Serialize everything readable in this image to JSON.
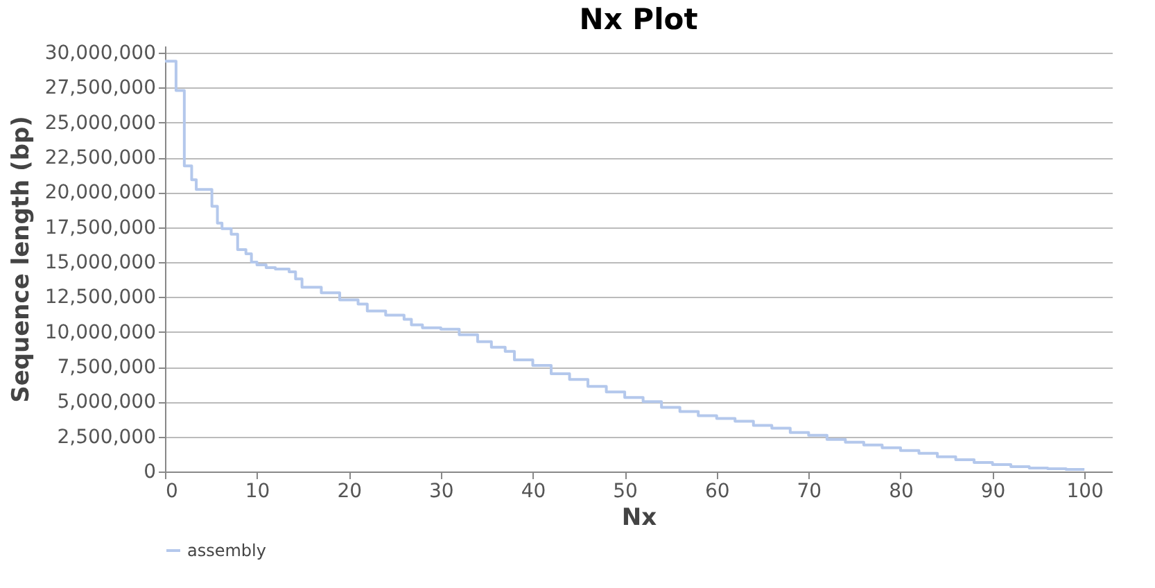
{
  "chart_data": {
    "type": "step",
    "title": "Nx Plot",
    "xlabel": "Nx",
    "ylabel": "Sequence length (bp)",
    "xlim": [
      0,
      103
    ],
    "xticks": [
      0,
      10,
      20,
      30,
      40,
      50,
      60,
      70,
      80,
      90,
      100
    ],
    "ylim": [
      0,
      30500000
    ],
    "yticks": [
      {
        "value": 0,
        "label": "0"
      },
      {
        "value": 2500000,
        "label": "2,500,000"
      },
      {
        "value": 5000000,
        "label": "5,000,000"
      },
      {
        "value": 7500000,
        "label": "7,500,000"
      },
      {
        "value": 10000000,
        "label": "10,000,000"
      },
      {
        "value": 12500000,
        "label": "12,500,000"
      },
      {
        "value": 15000000,
        "label": "15,000,000"
      },
      {
        "value": 17500000,
        "label": "17,500,000"
      },
      {
        "value": 20000000,
        "label": "20,000,000"
      },
      {
        "value": 22500000,
        "label": "22,500,000"
      },
      {
        "value": 25000000,
        "label": "25,000,000"
      },
      {
        "value": 27500000,
        "label": "27,500,000"
      },
      {
        "value": 30000000,
        "label": "30,000,000"
      }
    ],
    "grid": "y",
    "legend": "bottom",
    "line_style": "solid",
    "series": [
      {
        "name": "assembly",
        "color": "#b4c8ec",
        "x": [
          0,
          1.2,
          2.1,
          2.9,
          3.4,
          5.1,
          5.7,
          6.2,
          7.2,
          7.9,
          8.8,
          9.4,
          10,
          11,
          12,
          13.5,
          14.2,
          14.9,
          17,
          19,
          21,
          22,
          24,
          26,
          26.8,
          28,
          30,
          32,
          34,
          35.5,
          37,
          38,
          40,
          42,
          44,
          46,
          48,
          50,
          52,
          54,
          56,
          58,
          60,
          62,
          64,
          66,
          68,
          70,
          72,
          74,
          76,
          78,
          80,
          82,
          84,
          86,
          88,
          90,
          92,
          94,
          96,
          98,
          100
        ],
        "values": [
          29400000,
          27300000,
          21900000,
          20900000,
          20200000,
          19000000,
          17800000,
          17400000,
          17000000,
          15900000,
          15600000,
          15000000,
          14800000,
          14600000,
          14500000,
          14300000,
          13800000,
          13200000,
          12800000,
          12300000,
          12000000,
          11500000,
          11200000,
          10900000,
          10500000,
          10300000,
          10200000,
          9800000,
          9300000,
          8900000,
          8600000,
          8000000,
          7600000,
          7000000,
          6600000,
          6100000,
          5700000,
          5300000,
          5000000,
          4600000,
          4300000,
          4000000,
          3800000,
          3600000,
          3300000,
          3100000,
          2800000,
          2600000,
          2300000,
          2100000,
          1900000,
          1700000,
          1500000,
          1300000,
          1050000,
          850000,
          650000,
          500000,
          350000,
          250000,
          200000,
          150000,
          150000
        ]
      }
    ]
  }
}
